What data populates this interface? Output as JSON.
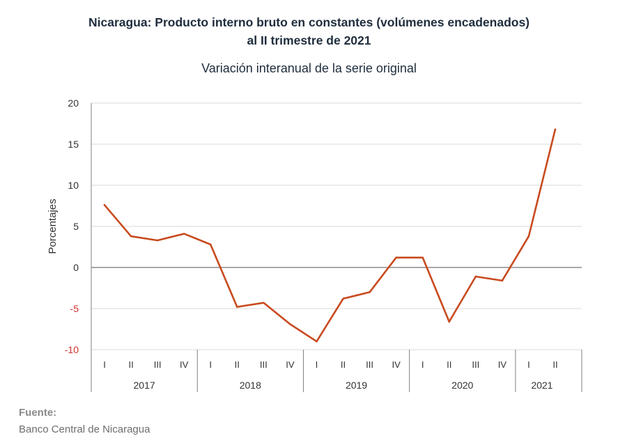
{
  "title_line1": "Nicaragua: Producto interno bruto en constantes (volúmenes encadenados)",
  "title_line2": "al II trimestre de 2021",
  "subtitle": "Variación interanual de la serie original",
  "source_label": "Fuente:",
  "source_text": "Banco Central de Nicaragua",
  "colors": {
    "line": "#c84a1e",
    "negative_tick": "#d0312d",
    "grid": "#d9d9d9",
    "axis": "#7f7f7f"
  },
  "chart_data": {
    "type": "line",
    "title": "Nicaragua: Producto interno bruto en constantes (volúmenes encadenados) al II trimestre de 2021",
    "subtitle": "Variación interanual de la serie original",
    "ylabel": "Porcentajes",
    "ylim": [
      -10,
      20
    ],
    "yticks": [
      20,
      15,
      10,
      5,
      0,
      -5,
      -10
    ],
    "grid": true,
    "quarters": [
      "I",
      "II",
      "III",
      "IV",
      "I",
      "II",
      "III",
      "IV",
      "I",
      "II",
      "III",
      "IV",
      "I",
      "II",
      "III",
      "IV",
      "I",
      "II"
    ],
    "years": [
      {
        "label": "2017",
        "count": 4
      },
      {
        "label": "2018",
        "count": 4
      },
      {
        "label": "2019",
        "count": 4
      },
      {
        "label": "2020",
        "count": 4
      },
      {
        "label": "2021",
        "count": 2
      }
    ],
    "series": [
      {
        "values": [
          7.6,
          3.8,
          3.3,
          4.1,
          2.8,
          -4.8,
          -4.3,
          -6.9,
          -9.0,
          -3.8,
          -3.0,
          1.2,
          1.2,
          -6.6,
          -1.1,
          -1.6,
          3.8,
          16.8
        ]
      }
    ]
  }
}
